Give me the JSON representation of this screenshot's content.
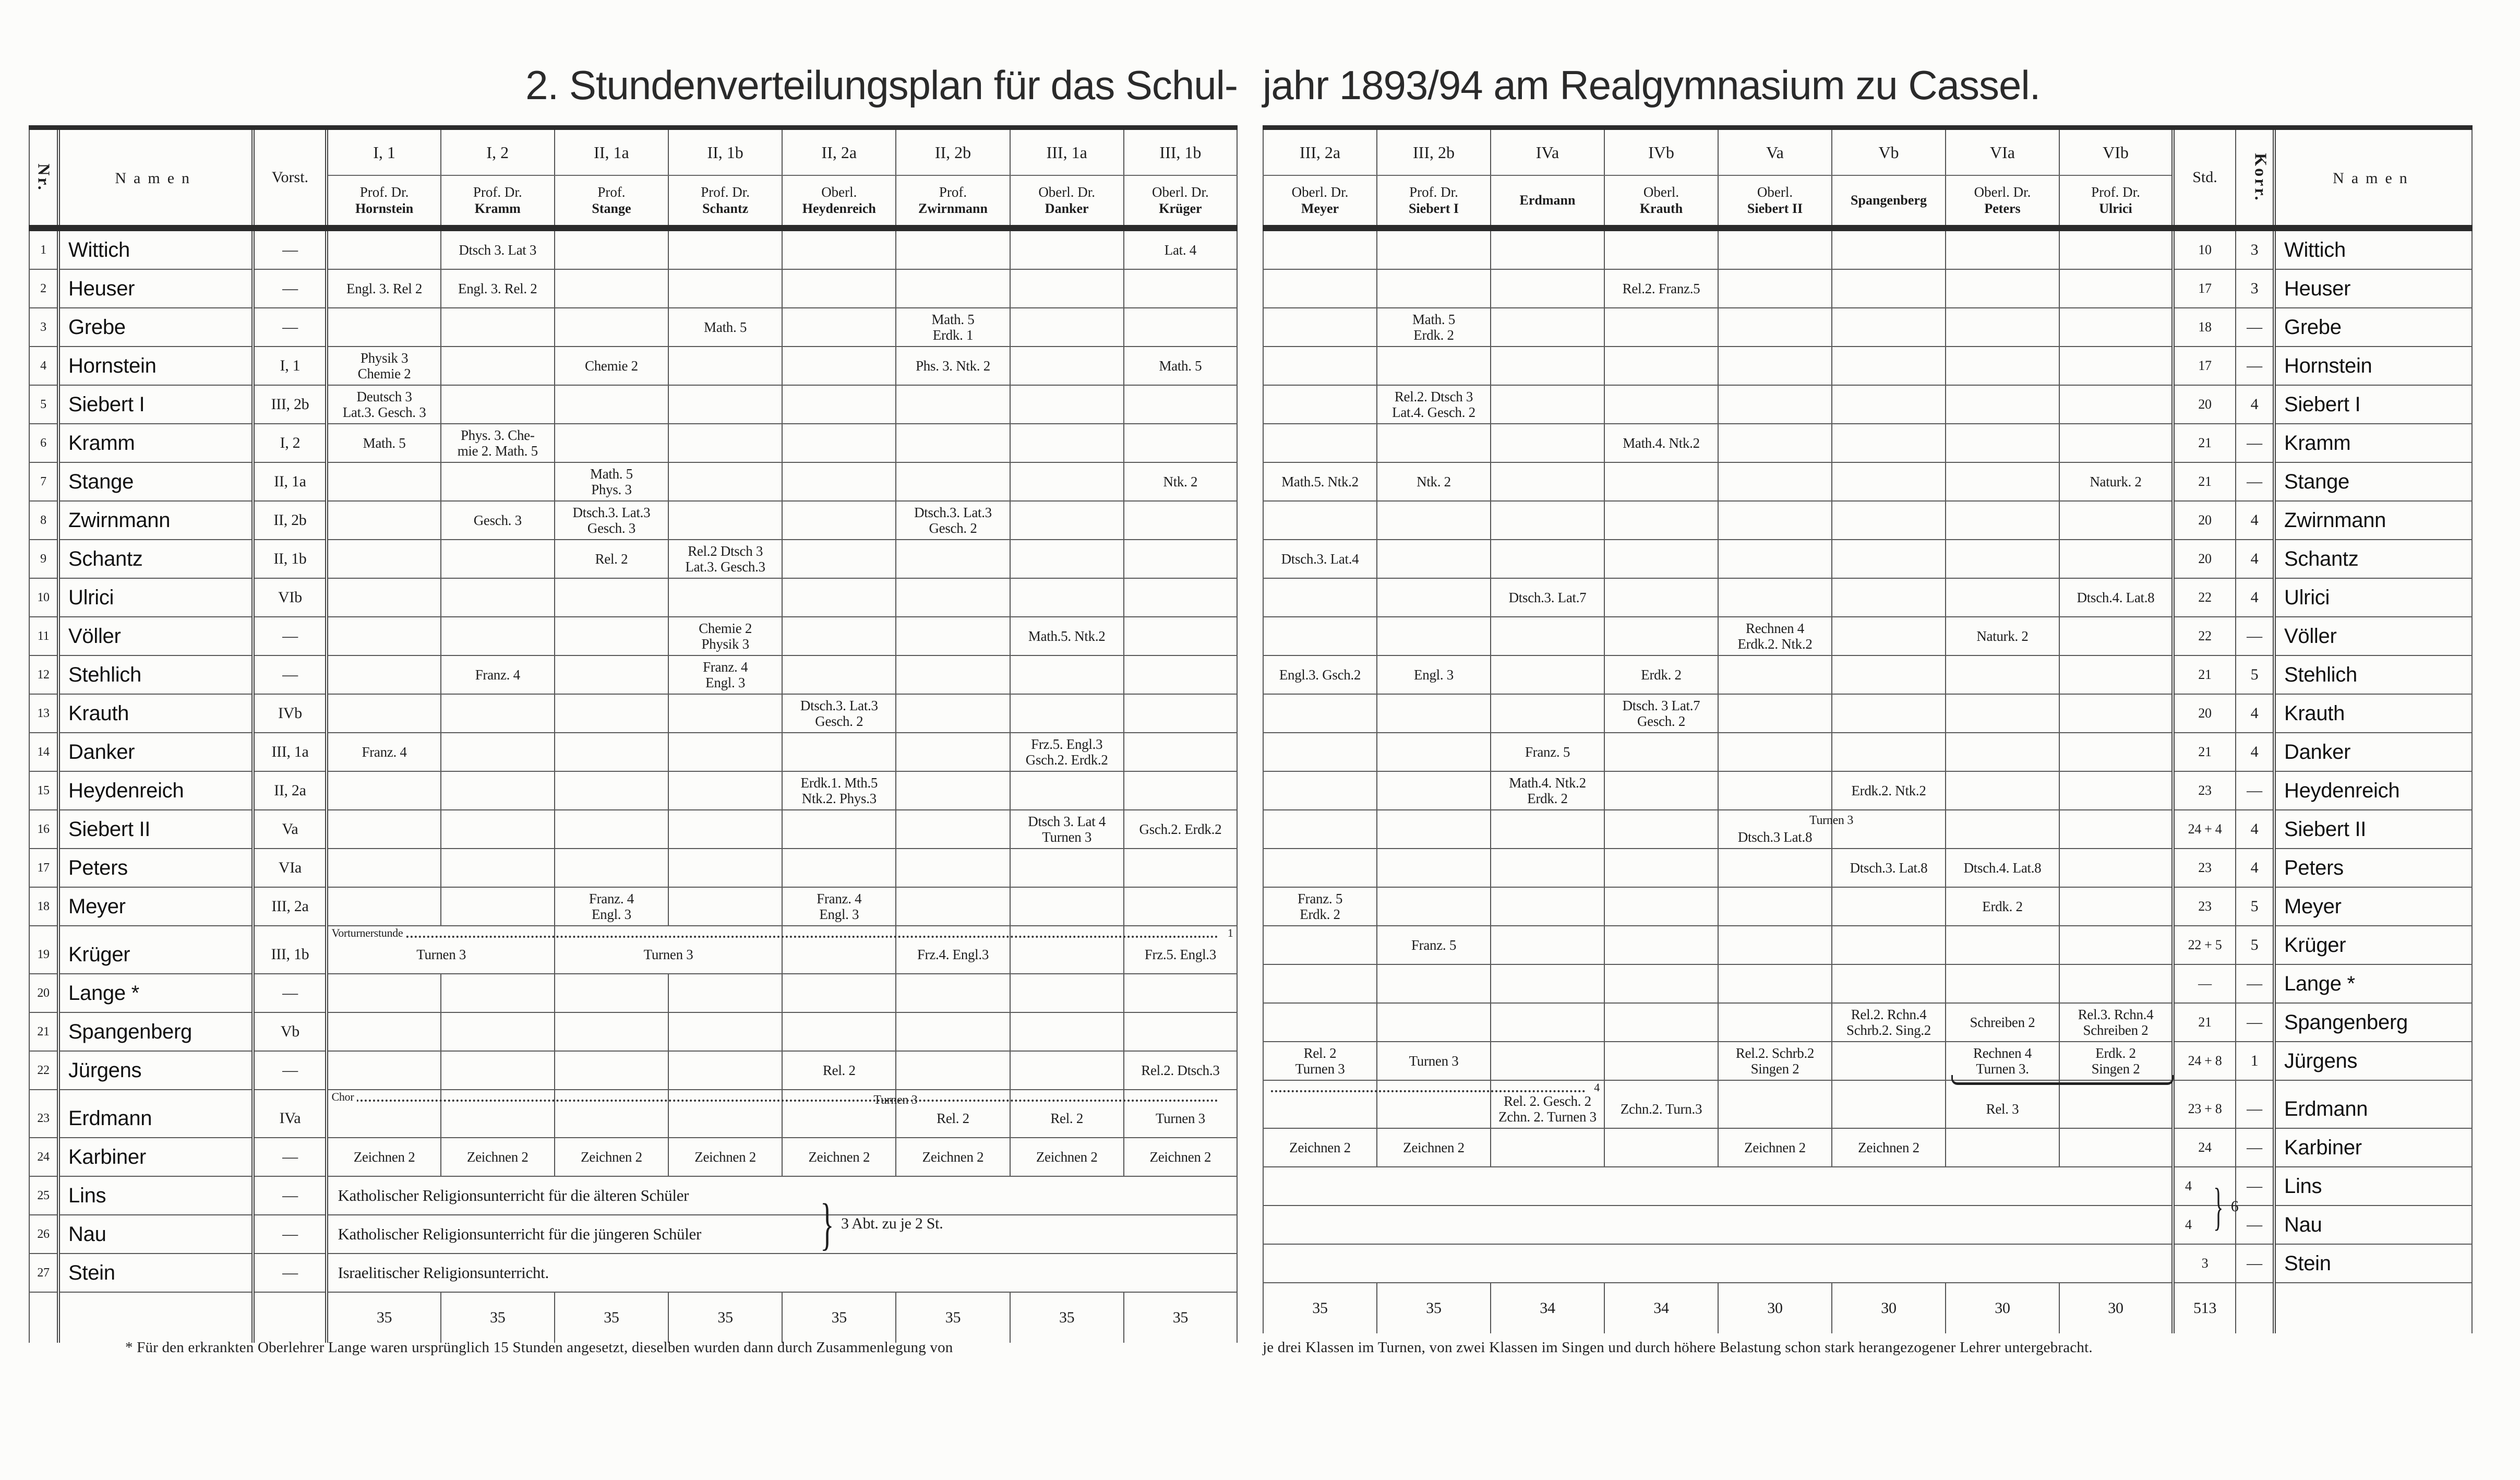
{
  "title": {
    "left": "2. Stundenverteilungsplan für das Schul-",
    "right": "jahr 1893/94 am Realgymnasium zu Cassel."
  },
  "headers": {
    "nr": "Nr.",
    "namen": "Namen",
    "vorst": "Vorst.",
    "std": "Std.",
    "korr": "Korr."
  },
  "left_classes": [
    {
      "cls": "I, 1",
      "title": "Prof. Dr.",
      "name": "Hornstein"
    },
    {
      "cls": "I, 2",
      "title": "Prof. Dr.",
      "name": "Kramm"
    },
    {
      "cls": "II, 1a",
      "title": "Prof.",
      "name": "Stange"
    },
    {
      "cls": "II, 1b",
      "title": "Prof. Dr.",
      "name": "Schantz"
    },
    {
      "cls": "II, 2a",
      "title": "Oberl.",
      "name": "Heydenreich"
    },
    {
      "cls": "II, 2b",
      "title": "Prof.",
      "name": "Zwirnmann"
    },
    {
      "cls": "III, 1a",
      "title": "Oberl. Dr.",
      "name": "Danker"
    },
    {
      "cls": "III, 1b",
      "title": "Oberl. Dr.",
      "name": "Krüger"
    }
  ],
  "right_classes": [
    {
      "cls": "III, 2a",
      "title": "Oberl. Dr.",
      "name": "Meyer"
    },
    {
      "cls": "III, 2b",
      "title": "Prof. Dr.",
      "name": "Siebert I"
    },
    {
      "cls": "IVa",
      "title": "",
      "name": "Erdmann"
    },
    {
      "cls": "IVb",
      "title": "Oberl.",
      "name": "Krauth"
    },
    {
      "cls": "Va",
      "title": "Oberl.",
      "name": "Siebert II"
    },
    {
      "cls": "Vb",
      "title": "",
      "name": "Spangenberg"
    },
    {
      "cls": "VIa",
      "title": "Oberl. Dr.",
      "name": "Peters"
    },
    {
      "cls": "VIb",
      "title": "Prof. Dr.",
      "name": "Ulrici"
    }
  ],
  "rows": [
    {
      "nr": "1",
      "name": "Wittich",
      "vorst": "—",
      "std": "10",
      "korr": "3",
      "left": [
        "",
        "Dtsch 3. Lat 3",
        "",
        "",
        "",
        "",
        "",
        "Lat. 4"
      ],
      "right": [
        "",
        "",
        "",
        "",
        "",
        "",
        "",
        ""
      ]
    },
    {
      "nr": "2",
      "name": "Heuser",
      "vorst": "—",
      "std": "17",
      "korr": "3",
      "left": [
        "Engl. 3. Rel 2",
        "Engl. 3. Rel. 2",
        "",
        "",
        "",
        "",
        "",
        ""
      ],
      "right": [
        "",
        "",
        "",
        "Rel.2. Franz.5",
        "",
        "",
        "",
        ""
      ]
    },
    {
      "nr": "3",
      "name": "Grebe",
      "vorst": "—",
      "std": "18",
      "korr": "—",
      "left": [
        "",
        "",
        "",
        "Math. 5",
        "",
        "Math. 5\nErdk. 1",
        "",
        ""
      ],
      "right": [
        "",
        "Math. 5\nErdk. 2",
        "",
        "",
        "",
        "",
        "",
        ""
      ]
    },
    {
      "nr": "4",
      "name": "Hornstein",
      "vorst": "I, 1",
      "std": "17",
      "korr": "—",
      "left": [
        "Physik 3\nChemie 2",
        "",
        "Chemie 2",
        "",
        "",
        "Phs. 3. Ntk. 2",
        "",
        "Math. 5"
      ],
      "right": [
        "",
        "",
        "",
        "",
        "",
        "",
        "",
        ""
      ]
    },
    {
      "nr": "5",
      "name": "Siebert I",
      "vorst": "III, 2b",
      "std": "20",
      "korr": "4",
      "left": [
        "Deutsch 3\nLat.3. Gesch. 3",
        "",
        "",
        "",
        "",
        "",
        "",
        ""
      ],
      "right": [
        "",
        "Rel.2. Dtsch 3\nLat.4. Gesch. 2",
        "",
        "",
        "",
        "",
        "",
        ""
      ]
    },
    {
      "nr": "6",
      "name": "Kramm",
      "vorst": "I, 2",
      "std": "21",
      "korr": "—",
      "left": [
        "Math. 5",
        "Phys. 3. Che-\nmie 2. Math. 5",
        "",
        "",
        "",
        "",
        "",
        ""
      ],
      "right": [
        "",
        "",
        "",
        "Math.4. Ntk.2",
        "",
        "",
        "",
        ""
      ]
    },
    {
      "nr": "7",
      "name": "Stange",
      "vorst": "II, 1a",
      "std": "21",
      "korr": "—",
      "left": [
        "",
        "",
        "Math. 5\nPhys. 3",
        "",
        "",
        "",
        "",
        "Ntk. 2"
      ],
      "right": [
        "Math.5. Ntk.2",
        "Ntk. 2",
        "",
        "",
        "",
        "",
        "",
        "Naturk. 2"
      ]
    },
    {
      "nr": "8",
      "name": "Zwirnmann",
      "vorst": "II, 2b",
      "std": "20",
      "korr": "4",
      "left": [
        "",
        "Gesch. 3",
        "Dtsch.3. Lat.3\nGesch. 3",
        "",
        "",
        "Dtsch.3. Lat.3\nGesch. 2",
        "",
        ""
      ],
      "right": [
        "",
        "",
        "",
        "",
        "",
        "",
        "",
        ""
      ]
    },
    {
      "nr": "9",
      "name": "Schantz",
      "vorst": "II, 1b",
      "std": "20",
      "korr": "4",
      "left": [
        "",
        "",
        "Rel. 2",
        "Rel.2 Dtsch 3\nLat.3. Gesch.3",
        "",
        "",
        "",
        ""
      ],
      "right": [
        "Dtsch.3. Lat.4",
        "",
        "",
        "",
        "",
        "",
        "",
        ""
      ]
    },
    {
      "nr": "10",
      "name": "Ulrici",
      "vorst": "VIb",
      "std": "22",
      "korr": "4",
      "left": [
        "",
        "",
        "",
        "",
        "",
        "",
        "",
        ""
      ],
      "right": [
        "",
        "",
        "Dtsch.3. Lat.7",
        "",
        "",
        "",
        "",
        "Dtsch.4. Lat.8"
      ]
    },
    {
      "nr": "11",
      "name": "Völler",
      "vorst": "—",
      "std": "22",
      "korr": "—",
      "left": [
        "",
        "",
        "",
        "Chemie 2\nPhysik 3",
        "",
        "",
        "Math.5. Ntk.2",
        ""
      ],
      "right": [
        "",
        "",
        "",
        "",
        "Rechnen 4\nErdk.2. Ntk.2",
        "",
        "Naturk. 2",
        ""
      ]
    },
    {
      "nr": "12",
      "name": "Stehlich",
      "vorst": "—",
      "std": "21",
      "korr": "5",
      "left": [
        "",
        "Franz. 4",
        "",
        "Franz. 4\nEngl. 3",
        "",
        "",
        "",
        ""
      ],
      "right": [
        "Engl.3. Gsch.2",
        "Engl. 3",
        "",
        "Erdk. 2",
        "",
        "",
        "",
        ""
      ]
    },
    {
      "nr": "13",
      "name": "Krauth",
      "vorst": "IVb",
      "std": "20",
      "korr": "4",
      "left": [
        "",
        "",
        "",
        "",
        "Dtsch.3. Lat.3\nGesch. 2",
        "",
        "",
        ""
      ],
      "right": [
        "",
        "",
        "",
        "Dtsch. 3 Lat.7\nGesch. 2",
        "",
        "",
        "",
        ""
      ]
    },
    {
      "nr": "14",
      "name": "Danker",
      "vorst": "III, 1a",
      "std": "21",
      "korr": "4",
      "left": [
        "Franz. 4",
        "",
        "",
        "",
        "",
        "",
        "Frz.5. Engl.3\nGsch.2. Erdk.2",
        ""
      ],
      "right": [
        "",
        "",
        "Franz. 5",
        "",
        "",
        "",
        "",
        ""
      ]
    },
    {
      "nr": "15",
      "name": "Heydenreich",
      "vorst": "II, 2a",
      "std": "23",
      "korr": "—",
      "left": [
        "",
        "",
        "",
        "",
        "Erdk.1. Mth.5\nNtk.2. Phys.3",
        "",
        "",
        ""
      ],
      "right": [
        "",
        "",
        "Math.4. Ntk.2\nErdk. 2",
        "",
        "",
        "Erdk.2. Ntk.2",
        "",
        ""
      ]
    },
    {
      "nr": "16",
      "name": "Siebert II",
      "vorst": "Va",
      "std": "24 + 4",
      "korr": "4",
      "left": [
        "",
        "",
        "",
        "",
        "",
        "",
        "Dtsch 3. Lat 4\nTurnen 3",
        "Gsch.2. Erdk.2"
      ],
      "right": [
        "",
        "",
        "",
        "",
        {
          "text": "\nDtsch.3 Lat.8",
          "above_right": "Turnen 3"
        },
        "",
        "",
        ""
      ]
    },
    {
      "nr": "17",
      "name": "Peters",
      "vorst": "VIa",
      "std": "23",
      "korr": "4",
      "left": [
        "",
        "",
        "",
        "",
        "",
        "",
        "",
        ""
      ],
      "right": [
        "",
        "",
        "",
        "",
        "",
        "Dtsch.3. Lat.8",
        "Dtsch.4. Lat.8",
        ""
      ]
    },
    {
      "nr": "18",
      "name": "Meyer",
      "vorst": "III, 2a",
      "std": "23",
      "korr": "5",
      "left": [
        "",
        "",
        "Franz. 4\nEngl. 3",
        "",
        "Franz. 4\nEngl. 3",
        "",
        "",
        ""
      ],
      "right": [
        "Franz. 5\nErdk. 2",
        "",
        "",
        "",
        "",
        "",
        "Erdk. 2",
        ""
      ]
    },
    {
      "nr": "19",
      "name": "Krüger",
      "vorst": "III, 1b",
      "std": "22 + 5",
      "korr": "5",
      "left_dots": {
        "label": "Vorturnerstunde",
        "end": "1",
        "cols": 8
      },
      "left": [
        {
          "text": "Turnen 3",
          "span": 2
        },
        {
          "text": "Turnen 3",
          "span": 2
        },
        "",
        "Frz.4. Engl.3",
        "",
        "Frz.5. Engl.3"
      ],
      "right": [
        "",
        "Franz. 5",
        "",
        "",
        "",
        "",
        "",
        ""
      ]
    },
    {
      "nr": "20",
      "name": "Lange *",
      "vorst": "—",
      "std": "—",
      "korr": "—",
      "left": [
        "",
        "",
        "",
        "",
        "",
        "",
        "",
        ""
      ],
      "right": [
        "",
        "",
        "",
        "",
        "",
        "",
        "",
        ""
      ]
    },
    {
      "nr": "21",
      "name": "Spangenberg",
      "vorst": "Vb",
      "std": "21",
      "korr": "—",
      "left": [
        "",
        "",
        "",
        "",
        "",
        "",
        "",
        ""
      ],
      "right": [
        "",
        "",
        "",
        "",
        "",
        "Rel.2. Rchn.4\nSchrb.2. Sing.2",
        "Schreiben 2",
        "Rel.3. Rchn.4\nSchreiben 2"
      ]
    },
    {
      "nr": "22",
      "name": "Jürgens",
      "vorst": "—",
      "std": "24 + 8",
      "korr": "1",
      "left": [
        "",
        "",
        "",
        "",
        "Rel. 2",
        "",
        "",
        "Rel.2. Dtsch.3"
      ],
      "right": [
        "Rel. 2\nTurnen 3",
        "Turnen 3",
        "",
        "",
        "Rel.2. Schrb.2\nSingen 2",
        "",
        {
          "text": "Rechnen 4\nTurnen 3.",
          "under_brace": true
        },
        "Erdk. 2\nSingen 2"
      ]
    },
    {
      "nr": "23",
      "name": "Erdmann",
      "vorst": "IVa",
      "std": "23 + 8",
      "korr": "—",
      "left_dots": {
        "label": "Chor",
        "end": "",
        "cols": 8
      },
      "right_dots": {
        "label": "",
        "end": "4",
        "cols": 3
      },
      "left": [
        "",
        "",
        "",
        "",
        {
          "text": "",
          "above_right": "Turnen 3"
        },
        "Rel. 2",
        "Rel. 2",
        "Turnen 3"
      ],
      "right": [
        "",
        "",
        "Rel. 2. Gesch. 2\nZchn. 2. Turnen 3",
        "Zchn.2. Turn.3",
        "",
        "",
        "Rel. 3",
        ""
      ]
    },
    {
      "nr": "24",
      "name": "Karbiner",
      "vorst": "—",
      "std": "24",
      "korr": "—",
      "left": [
        "Zeichnen 2",
        "Zeichnen 2",
        "Zeichnen 2",
        "Zeichnen 2",
        "Zeichnen 2",
        "Zeichnen 2",
        "Zeichnen 2",
        "Zeichnen 2"
      ],
      "right": [
        "Zeichnen 2",
        "Zeichnen 2",
        "",
        "",
        "Zeichnen 2",
        "Zeichnen 2",
        "",
        ""
      ]
    },
    {
      "nr": "25",
      "name": "Lins",
      "vorst": "—",
      "std": "4",
      "korr": "—",
      "left": [
        {
          "text": "Katholischer Religionsunterricht für die älteren Schüler",
          "span": 8
        }
      ],
      "right": [
        {
          "text": "",
          "span": 8
        }
      ]
    },
    {
      "nr": "26",
      "name": "Nau",
      "vorst": "—",
      "std": "4",
      "korr": "—",
      "left": [
        {
          "text": "Katholischer Religionsunterricht für die jüngeren Schüler",
          "span": 8
        }
      ],
      "right": [
        {
          "text": "",
          "span": 8
        }
      ]
    },
    {
      "nr": "27",
      "name": "Stein",
      "vorst": "—",
      "std": "3",
      "korr": "—",
      "left": [
        {
          "text": "Israelitischer Religionsunterricht.",
          "span": 8
        }
      ],
      "right": [
        {
          "text": "",
          "span": 8
        }
      ]
    }
  ],
  "catholic_note": "3 Abt. zu je 2 St.",
  "catholic_std_total": "6",
  "sums": {
    "left": [
      "35",
      "35",
      "35",
      "35",
      "35",
      "35",
      "35",
      "35"
    ],
    "right": [
      "35",
      "35",
      "34",
      "34",
      "30",
      "30",
      "30",
      "30"
    ],
    "total": "513"
  },
  "footnote": {
    "left": "* Für den erkrankten Oberlehrer Lange waren ursprünglich 15 Stunden angesetzt, dieselben wurden dann durch Zusammenlegung von",
    "right": "je drei Klassen im Turnen, von zwei Klassen im Singen und durch höhere Belastung schon stark herangezogener Lehrer untergebracht."
  }
}
